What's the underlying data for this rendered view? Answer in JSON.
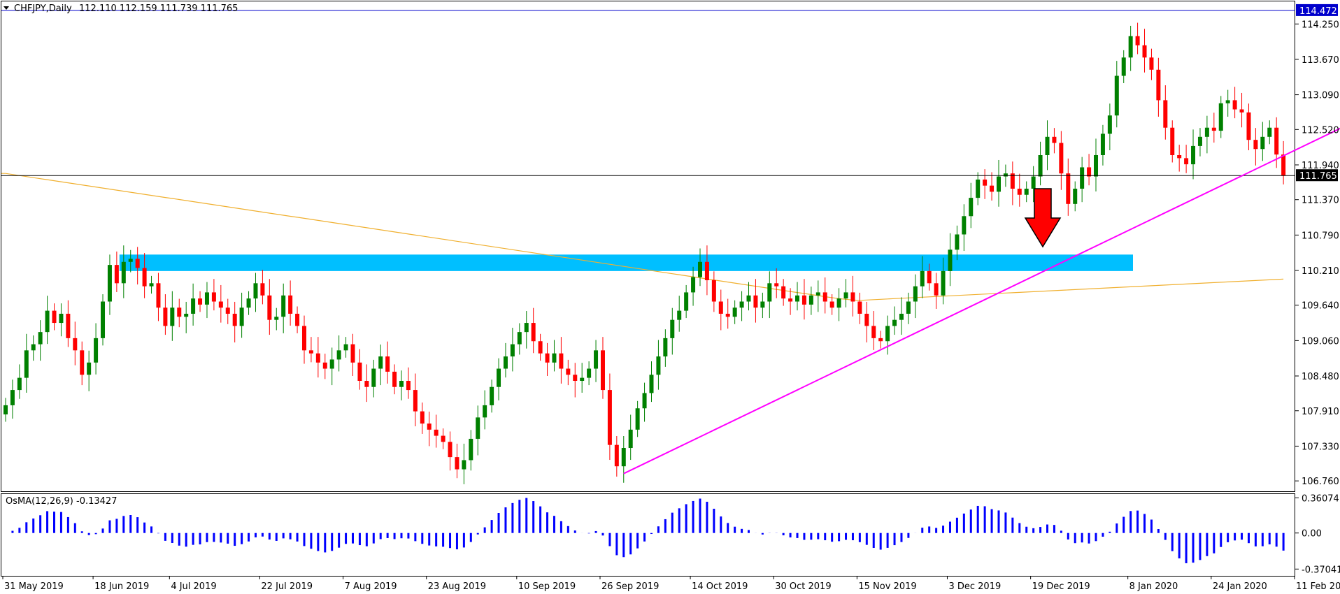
{
  "symbol_header": {
    "symbol": "CHFJPY,Daily",
    "ohlc": "112.110 112.159 111.739 111.765"
  },
  "osma_header": "OsMA(12,26,9) -0.13427",
  "price_axis": {
    "ticks": [
      "114.250",
      "113.670",
      "113.090",
      "112.520",
      "111.940",
      "111.370",
      "110.790",
      "110.210",
      "109.640",
      "109.060",
      "108.480",
      "107.910",
      "107.330",
      "106.760"
    ],
    "tick_values": [
      114.25,
      113.67,
      113.09,
      112.52,
      111.94,
      111.37,
      110.79,
      110.21,
      109.64,
      109.06,
      108.48,
      107.91,
      107.33,
      106.76
    ],
    "high_label": "114.472",
    "current_label": "111.765"
  },
  "osma_axis": {
    "ticks": [
      "0.36074",
      "0.00",
      "-0.37041"
    ],
    "tick_values": [
      0.36074,
      0.0,
      -0.37041
    ]
  },
  "time_axis": {
    "labels": [
      "31 May 2019",
      "18 Jun 2019",
      "4 Jul 2019",
      "22 Jul 2019",
      "7 Aug 2019",
      "23 Aug 2019",
      "10 Sep 2019",
      "26 Sep 2019",
      "14 Oct 2019",
      "30 Oct 2019",
      "15 Nov 2019",
      "3 Dec 2019",
      "19 Dec 2019",
      "8 Jan 2020",
      "24 Jan 2020",
      "11 Feb 2020"
    ],
    "label_bar_index": [
      0,
      13,
      24,
      37,
      49,
      61,
      74,
      86,
      99,
      111,
      123,
      136,
      148,
      162,
      174,
      186
    ]
  },
  "colors": {
    "bull": "#008000",
    "bear": "#ff0000",
    "ma": "#f0b030",
    "trendline": "#ff00ff",
    "zone": "#00bfff",
    "osma": "#0000ff",
    "high_line": "#0000cc",
    "arrow": "#ff0000"
  },
  "chart_data": {
    "type": "candlestick",
    "symbol": "CHFJPY",
    "timeframe": "Daily",
    "ohlc_header": [
      112.11,
      112.159,
      111.739,
      111.765
    ],
    "indicator": "OsMA(12,26,9)",
    "indicator_value": -0.13427,
    "high_line": 114.472,
    "current_price": 111.765,
    "ylim": [
      106.59,
      114.62
    ],
    "osma_ylim": [
      -0.44,
      0.4
    ],
    "zone": {
      "low": 110.2,
      "high": 110.47,
      "from_bar": 17,
      "to_bar": "right"
    },
    "trendline": {
      "start": [
        89,
        106.88
      ],
      "end": [
        192,
        112.57
      ]
    },
    "arrow": "down",
    "closes": [
      108.0,
      108.25,
      108.45,
      108.9,
      109.0,
      109.2,
      109.55,
      109.35,
      109.5,
      109.1,
      108.9,
      108.5,
      108.7,
      109.1,
      109.7,
      110.3,
      110.0,
      110.35,
      110.4,
      110.25,
      109.95,
      110.0,
      109.6,
      109.3,
      109.6,
      109.45,
      109.5,
      109.75,
      109.65,
      109.85,
      109.7,
      109.6,
      109.5,
      109.3,
      109.6,
      109.75,
      110.0,
      109.8,
      109.4,
      109.45,
      109.8,
      109.5,
      109.3,
      108.9,
      108.85,
      108.7,
      108.6,
      108.75,
      108.9,
      109.0,
      108.7,
      108.4,
      108.3,
      108.6,
      108.8,
      108.55,
      108.3,
      108.4,
      108.25,
      107.9,
      107.7,
      107.6,
      107.5,
      107.4,
      107.15,
      106.95,
      107.1,
      107.45,
      107.8,
      108.0,
      108.3,
      108.6,
      108.8,
      109.0,
      109.2,
      109.35,
      109.05,
      108.85,
      108.7,
      108.85,
      108.6,
      108.5,
      108.4,
      108.45,
      108.6,
      108.9,
      108.25,
      107.35,
      107.0,
      107.3,
      107.6,
      107.95,
      108.2,
      108.5,
      108.8,
      109.1,
      109.4,
      109.55,
      109.85,
      110.1,
      110.35,
      110.05,
      109.7,
      109.5,
      109.45,
      109.6,
      109.7,
      109.8,
      109.6,
      109.7,
      110.0,
      109.95,
      109.75,
      109.7,
      109.8,
      109.65,
      109.8,
      109.85,
      109.7,
      109.6,
      109.75,
      109.85,
      109.7,
      109.5,
      109.3,
      109.1,
      109.05,
      109.3,
      109.4,
      109.5,
      109.7,
      109.95,
      110.2,
      110.0,
      109.8,
      110.2,
      110.55,
      110.8,
      111.1,
      111.4,
      111.7,
      111.6,
      111.5,
      111.75,
      111.8,
      111.55,
      111.45,
      111.55,
      111.75,
      112.1,
      112.4,
      112.3,
      111.8,
      111.3,
      111.55,
      111.9,
      111.75,
      112.1,
      112.45,
      112.75,
      113.4,
      113.7,
      114.05,
      113.9,
      113.7,
      113.5,
      113.0,
      112.55,
      112.1,
      112.05,
      111.95,
      112.25,
      112.4,
      112.55,
      112.5,
      112.95,
      113.0,
      112.85,
      112.8,
      112.35,
      112.2,
      112.4,
      112.55,
      112.11,
      111.765
    ]
  }
}
